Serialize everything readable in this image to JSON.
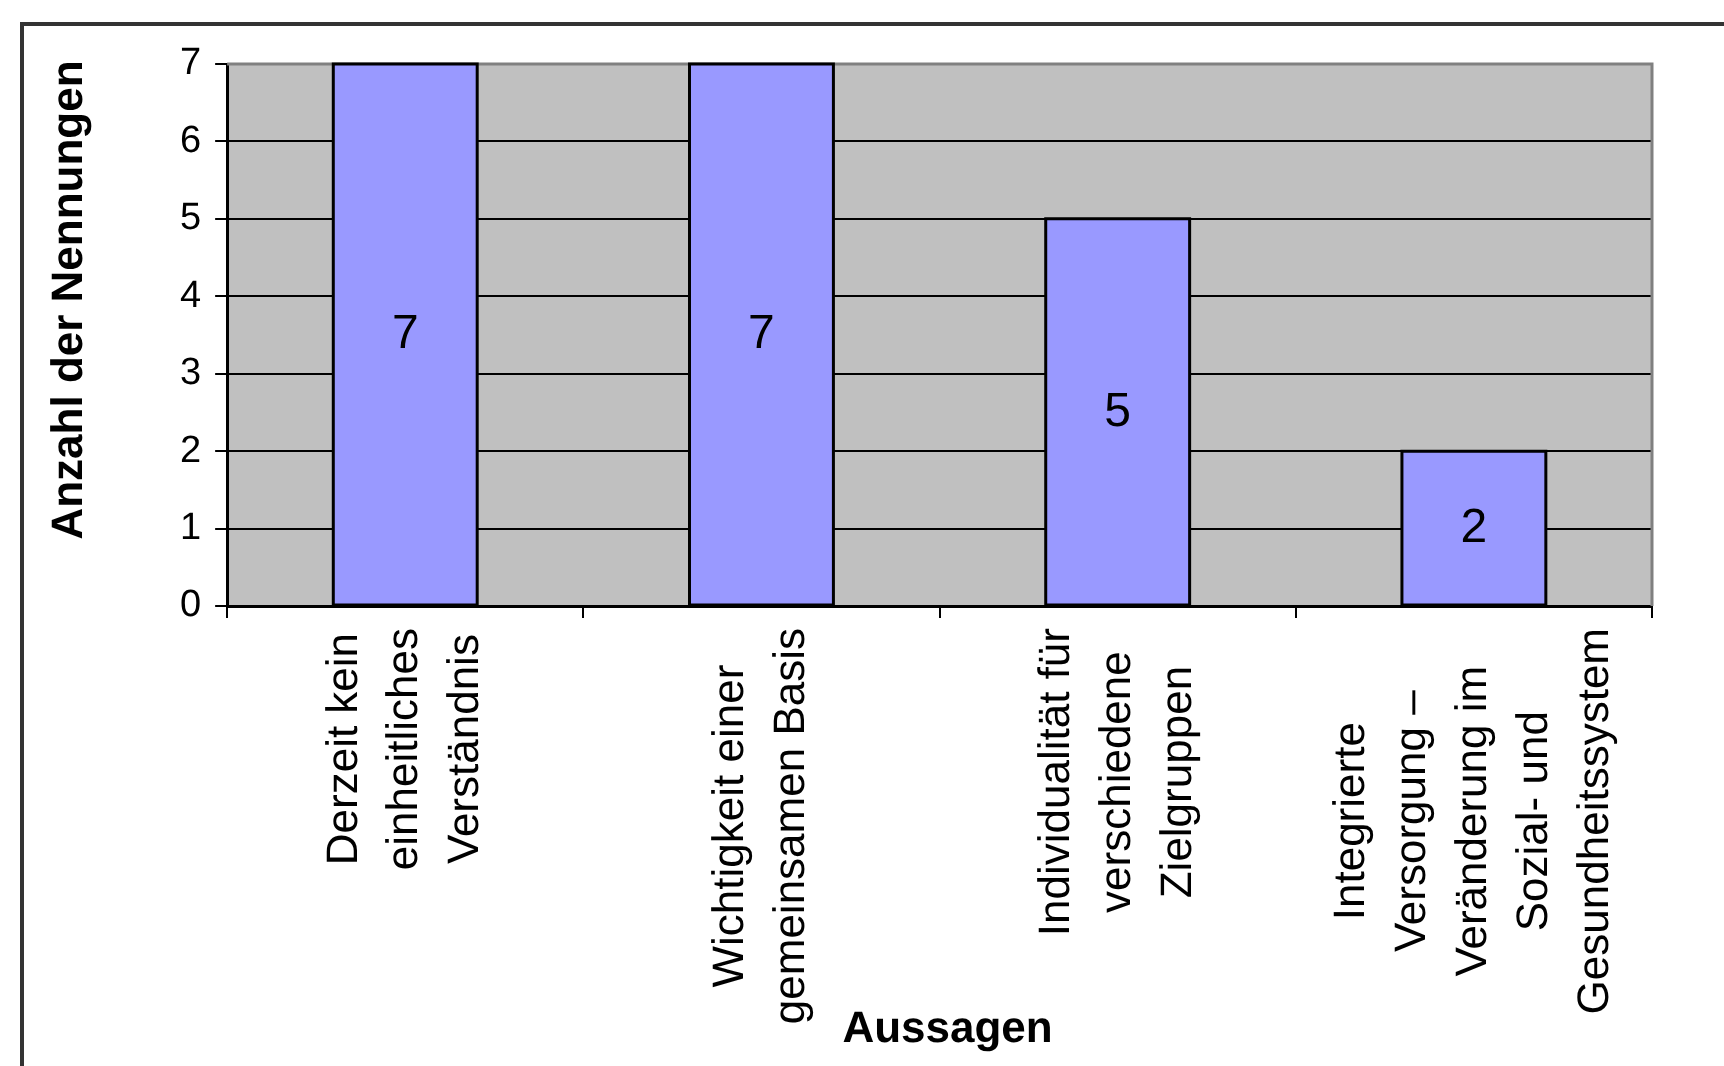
{
  "chart_data": {
    "type": "bar",
    "xlabel": "Aussagen",
    "ylabel": "Anzahl der Nennungen",
    "categories": [
      "Derzeit kein einheitliches Verständnis",
      "Wichtigkeit einer gemeinsamen Basis",
      "Individualität für verschiedene Zielgruppen",
      "Integrierte Versorgung – Veränderung im Sozial- und Gesundheitssystem"
    ],
    "values": [
      7,
      7,
      5,
      2
    ],
    "color": "#9999ff",
    "ylim": [
      0,
      7
    ],
    "yticks": [
      0,
      1,
      2,
      3,
      4,
      5,
      6,
      7
    ],
    "grid": "y",
    "data_labels": true
  }
}
